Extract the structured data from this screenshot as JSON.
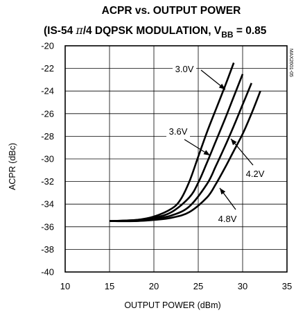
{
  "chart_data": {
    "type": "line",
    "title": "ACPR vs. OUTPUT POWER",
    "subtitle_parts": {
      "before_pi": "(IS-54 ",
      "pi": "π",
      "after_pi": "/4 DQPSK MODULATION, V",
      "sub": "BB",
      "end": " = 0.85"
    },
    "xlabel": "OUTPUT POWER (dBm)",
    "ylabel": "ACPR (dBc)",
    "xlim": [
      10,
      35
    ],
    "ylim": [
      -40,
      -20
    ],
    "x_ticks": [
      "10",
      "15",
      "20",
      "25",
      "30",
      "35"
    ],
    "y_ticks": [
      "-20",
      "-22",
      "-24",
      "-26",
      "-28",
      "-30",
      "-32",
      "-34",
      "-36",
      "-38",
      "-40"
    ],
    "grid": true,
    "side_code": "MAX2601-05",
    "series": [
      {
        "name": "3.0V",
        "x": [
          15.0,
          18.0,
          20.0,
          22.0,
          23.0,
          24.0,
          25.0,
          26.0,
          27.0,
          28.0,
          29.0
        ],
        "y": [
          -35.5,
          -35.4,
          -35.1,
          -34.4,
          -33.6,
          -32.0,
          -29.8,
          -27.6,
          -25.6,
          -23.6,
          -21.5
        ]
      },
      {
        "name": "3.6V",
        "x": [
          15.0,
          18.0,
          20.0,
          22.0,
          24.0,
          25.0,
          26.0,
          27.0,
          28.0,
          29.0,
          30.0
        ],
        "y": [
          -35.5,
          -35.4,
          -35.2,
          -34.7,
          -33.4,
          -32.1,
          -30.3,
          -28.4,
          -26.5,
          -24.5,
          -22.5
        ]
      },
      {
        "name": "4.2V",
        "x": [
          15.0,
          18.0,
          20.0,
          22.0,
          24.0,
          26.0,
          27.0,
          28.0,
          29.0,
          30.0,
          31.0
        ],
        "y": [
          -35.5,
          -35.5,
          -35.3,
          -35.0,
          -34.2,
          -32.2,
          -30.6,
          -28.9,
          -27.1,
          -25.2,
          -23.3
        ]
      },
      {
        "name": "4.8V",
        "x": [
          15.0,
          18.0,
          20.0,
          22.0,
          24.0,
          26.0,
          27.0,
          28.0,
          29.0,
          30.0,
          31.0,
          32.0
        ],
        "y": [
          -35.5,
          -35.5,
          -35.4,
          -35.2,
          -34.7,
          -33.4,
          -32.2,
          -30.8,
          -29.3,
          -27.8,
          -26.0,
          -24.0
        ]
      }
    ],
    "annotations": [
      {
        "text": "3.0V",
        "series": "3.0V"
      },
      {
        "text": "3.6V",
        "series": "3.6V"
      },
      {
        "text": "4.2V",
        "series": "4.2V"
      },
      {
        "text": "4.8V",
        "series": "4.8V"
      }
    ]
  }
}
